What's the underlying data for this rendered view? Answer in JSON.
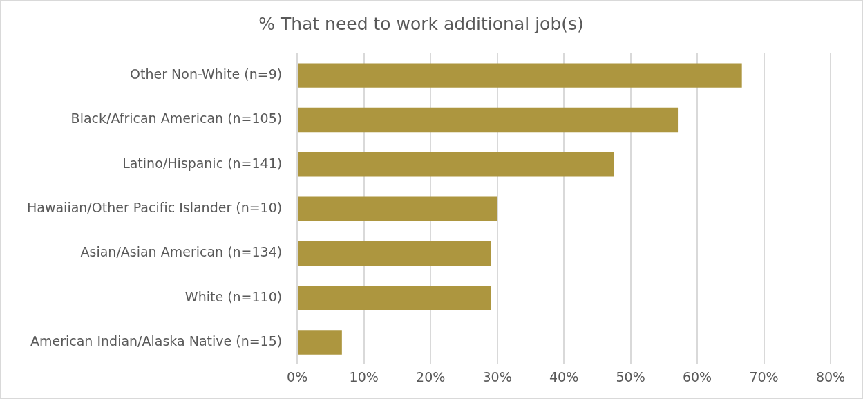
{
  "chart_data": {
    "type": "bar",
    "orientation": "horizontal",
    "title": "% That need to work additional job(s)",
    "categories": [
      "Other Non-White (n=9)",
      "Black/African American (n=105)",
      "Latino/Hispanic (n=141)",
      "Hawaiian/Other Pacific Islander (n=10)",
      "Asian/Asian American (n=134)",
      "White (n=110)",
      "American Indian/Alaska Native (n=15)"
    ],
    "values": [
      66.7,
      57.1,
      47.5,
      30.0,
      29.1,
      29.1,
      6.7
    ],
    "color": "#ad963f",
    "xlim": [
      0,
      80
    ],
    "xticks": [
      {
        "value": 0,
        "label": "0%"
      },
      {
        "value": 10,
        "label": "10%"
      },
      {
        "value": 20,
        "label": "20%"
      },
      {
        "value": 30,
        "label": "30%"
      },
      {
        "value": 40,
        "label": "40%"
      },
      {
        "value": 50,
        "label": "50%"
      },
      {
        "value": 60,
        "label": "60%"
      },
      {
        "value": 70,
        "label": "70%"
      },
      {
        "value": 80,
        "label": "80%"
      }
    ],
    "grid": "x",
    "legend": false
  }
}
